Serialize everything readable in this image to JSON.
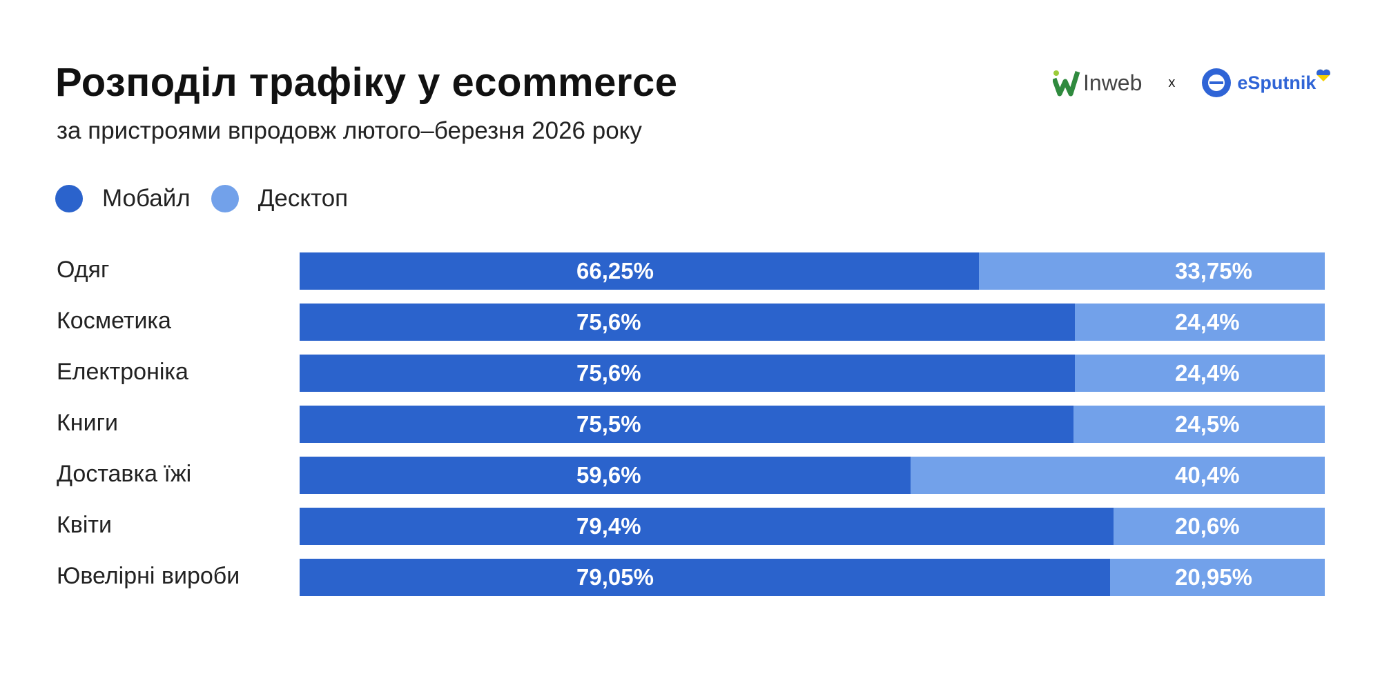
{
  "header": {
    "title": "Розподіл трафіку у ecommerce",
    "subtitle": "за пристроями впродовж лютого–березня 2026 року"
  },
  "logos": {
    "left": "Inweb",
    "separator": "x",
    "right": "eSputnik"
  },
  "chart_data": {
    "type": "bar",
    "orientation": "horizontal",
    "stacked": true,
    "percent_stacked": true,
    "legend_position": "top-left",
    "grid": false,
    "categories": [
      "Одяг",
      "Косметика",
      "Електроніка",
      "Книги",
      "Доставка їжі",
      "Квіти",
      "Ювелірні вироби"
    ],
    "series": [
      {
        "name": "Мобайл",
        "color": "#2b63cc",
        "values": [
          66.25,
          75.6,
          75.6,
          75.5,
          59.6,
          79.4,
          79.05
        ],
        "labels": [
          "66,25%",
          "75,6%",
          "75,6%",
          "75,5%",
          "59,6%",
          "79,4%",
          "79,05%"
        ]
      },
      {
        "name": "Десктоп",
        "color": "#72a1ea",
        "values": [
          33.75,
          24.4,
          24.4,
          24.5,
          40.4,
          20.6,
          20.95
        ],
        "labels": [
          "33,75%",
          "24,4%",
          "24,4%",
          "24,5%",
          "40,4%",
          "20,6%",
          "20,95%"
        ]
      }
    ],
    "xlim": [
      0,
      100
    ]
  }
}
